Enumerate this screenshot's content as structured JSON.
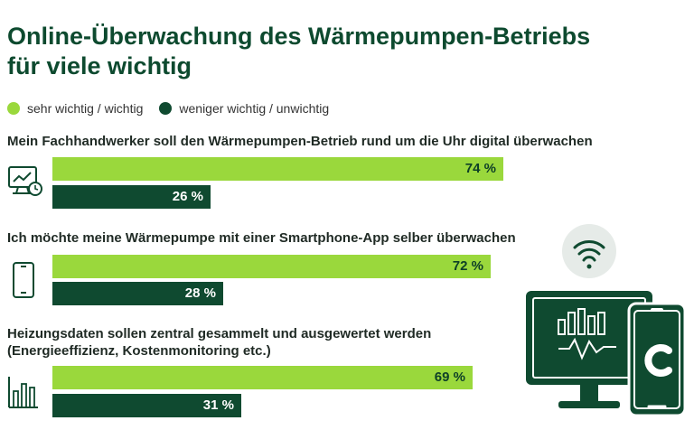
{
  "title_line1": "Online-Überwachung des Wärmepumpen-Betriebs",
  "title_line2": "für viele wichtig",
  "legend": [
    {
      "label": "sehr wichtig / wichtig",
      "color": "#9ad83c"
    },
    {
      "label": "weniger wichtig / unwichtig",
      "color": "#0f4a30"
    }
  ],
  "chart_data": {
    "type": "bar",
    "orientation": "horizontal",
    "title": "Online-Überwachung des Wärmepumpen-Betriebs für viele wichtig",
    "unit": "%",
    "categories": [
      "Mein Fachhandwerker soll den Wärmepumpen-Betrieb rund um die Uhr digital überwachen",
      "Ich möchte meine Wärmepumpe mit einer Smartphone-App selber überwachen",
      "Heizungsdaten sollen zentral gesammelt und ausgewertet werden (Energieeffizienz, Kostenmonitoring etc.)"
    ],
    "category_lines": [
      [
        "Mein Fachhandwerker soll den Wärmepumpen-Betrieb rund um die Uhr digital überwachen"
      ],
      [
        "Ich möchte meine Wärmepumpe mit einer Smartphone-App selber überwachen"
      ],
      [
        "Heizungsdaten sollen zentral gesammelt und ausgewertet werden",
        "(Energieeffizienz, Kostenmonitoring etc.)"
      ]
    ],
    "series": [
      {
        "name": "sehr wichtig / wichtig",
        "values": [
          74,
          72,
          69
        ],
        "labels": [
          "74 %",
          "72 %",
          "69 %"
        ],
        "color": "#9ad83c"
      },
      {
        "name": "weniger wichtig / unwichtig",
        "values": [
          26,
          28,
          31
        ],
        "labels": [
          "26 %",
          "28 %",
          "31 %"
        ],
        "color": "#0f4a30"
      }
    ],
    "xlim": [
      0,
      100
    ],
    "grid": false,
    "legend_position": "top-left"
  }
}
